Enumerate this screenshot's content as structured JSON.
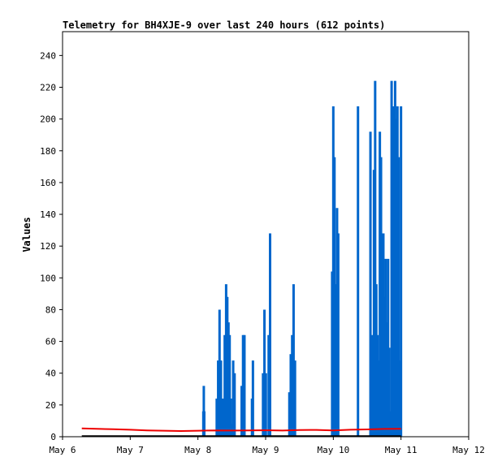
{
  "chart_data": {
    "type": "bar",
    "title": "Telemetry for BH4XJE-9 over last 240 hours (612 points)",
    "xlabel": "",
    "ylabel": "Values",
    "x_range": [
      "May 6",
      "May 12"
    ],
    "ylim": [
      0,
      255
    ],
    "x_ticks": [
      "May 6",
      "May 7",
      "May 8",
      "May 9",
      "May 10",
      "May 11",
      "May 12"
    ],
    "y_ticks": [
      0,
      20,
      40,
      60,
      80,
      100,
      120,
      140,
      160,
      180,
      200,
      220,
      240
    ],
    "grid": false,
    "legend": "none",
    "colors": {
      "blue_series": "#0066cc",
      "red_series": "#ee0000",
      "black_series": "#000000"
    },
    "series": [
      {
        "style": "impulse",
        "color": "#0066cc",
        "points": [
          [
            "May 8 01:55",
            16
          ],
          [
            "May 8 02:05",
            32
          ],
          [
            "May 8 02:15",
            16
          ],
          [
            "May 8 06:40",
            24
          ],
          [
            "May 8 07:10",
            48
          ],
          [
            "May 8 07:40",
            80
          ],
          [
            "May 8 08:10",
            48
          ],
          [
            "May 8 09:00",
            24
          ],
          [
            "May 8 09:30",
            64
          ],
          [
            "May 8 10:00",
            96
          ],
          [
            "May 8 10:25",
            88
          ],
          [
            "May 8 10:50",
            72
          ],
          [
            "May 8 11:15",
            64
          ],
          [
            "May 8 11:40",
            24
          ],
          [
            "May 8 12:05",
            8
          ],
          [
            "May 8 12:30",
            48
          ],
          [
            "May 8 13:00",
            40
          ],
          [
            "May 8 15:30",
            32
          ],
          [
            "May 8 16:00",
            64
          ],
          [
            "May 8 16:30",
            64
          ],
          [
            "May 8 19:10",
            24
          ],
          [
            "May 8 19:30",
            48
          ],
          [
            "May 8 23:05",
            40
          ],
          [
            "May 8 23:35",
            80
          ],
          [
            "May 9 00:05",
            40
          ],
          [
            "May 9 01:05",
            64
          ],
          [
            "May 9 01:35",
            128
          ],
          [
            "May 9 08:25",
            28
          ],
          [
            "May 9 08:55",
            52
          ],
          [
            "May 9 09:25",
            64
          ],
          [
            "May 9 09:55",
            96
          ],
          [
            "May 9 10:25",
            48
          ],
          [
            "May 9 23:35",
            104
          ],
          [
            "May 10 00:00",
            208
          ],
          [
            "May 10 00:25",
            176
          ],
          [
            "May 10 00:50",
            96
          ],
          [
            "May 10 01:20",
            144
          ],
          [
            "May 10 01:45",
            128
          ],
          [
            "May 10 08:45",
            208
          ],
          [
            "May 10 13:10",
            192
          ],
          [
            "May 10 13:35",
            32
          ],
          [
            "May 10 14:00",
            64
          ],
          [
            "May 10 14:25",
            168
          ],
          [
            "May 10 14:50",
            224
          ],
          [
            "May 10 15:15",
            96
          ],
          [
            "May 10 15:40",
            64
          ],
          [
            "May 10 16:05",
            48
          ],
          [
            "May 10 16:30",
            192
          ],
          [
            "May 10 16:55",
            176
          ],
          [
            "May 10 17:20",
            80
          ],
          [
            "May 10 17:45",
            128
          ],
          [
            "May 10 18:10",
            88
          ],
          [
            "May 10 18:35",
            112
          ],
          [
            "May 10 19:00",
            72
          ],
          [
            "May 10 19:25",
            112
          ],
          [
            "May 10 19:50",
            56
          ],
          [
            "May 10 20:15",
            16
          ],
          [
            "May 10 20:40",
            224
          ],
          [
            "May 10 21:05",
            168
          ],
          [
            "May 10 21:30",
            208
          ],
          [
            "May 10 21:55",
            224
          ],
          [
            "May 10 22:20",
            200
          ],
          [
            "May 10 22:45",
            208
          ],
          [
            "May 10 23:10",
            176
          ],
          [
            "May 10 23:35",
            48
          ],
          [
            "May 11 00:00",
            208
          ]
        ]
      },
      {
        "style": "line",
        "color": "#ee0000",
        "points": [
          [
            "May 6 06:50",
            5.2
          ],
          [
            "May 6 12:00",
            5.0
          ],
          [
            "May 6 18:00",
            4.7
          ],
          [
            "May 7 00:00",
            4.4
          ],
          [
            "May 7 06:00",
            4.0
          ],
          [
            "May 7 12:00",
            3.8
          ],
          [
            "May 7 18:00",
            3.6
          ],
          [
            "May 8 00:00",
            3.8
          ],
          [
            "May 8 06:00",
            4.0
          ],
          [
            "May 8 12:00",
            3.9
          ],
          [
            "May 8 18:00",
            4.0
          ],
          [
            "May 9 00:00",
            4.1
          ],
          [
            "May 9 06:00",
            3.9
          ],
          [
            "May 9 12:00",
            4.2
          ],
          [
            "May 9 18:00",
            4.3
          ],
          [
            "May 10 00:00",
            4.0
          ],
          [
            "May 10 06:00",
            4.4
          ],
          [
            "May 10 12:00",
            4.6
          ],
          [
            "May 10 18:00",
            4.9
          ],
          [
            "May 11 00:00",
            5.0
          ]
        ]
      },
      {
        "style": "line",
        "color": "#000000",
        "points": [
          [
            "May 6 06:50",
            0.4
          ],
          [
            "May 7 12:00",
            0.4
          ],
          [
            "May 9 00:00",
            0.4
          ],
          [
            "May 11 00:00",
            0.4
          ]
        ]
      }
    ]
  }
}
